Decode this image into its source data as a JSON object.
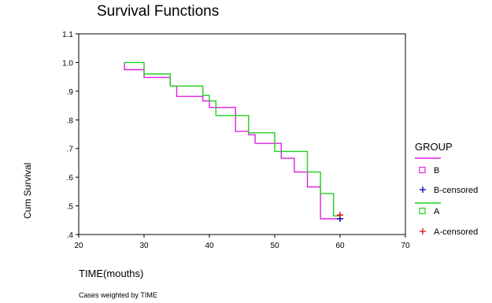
{
  "chart_data": {
    "type": "line",
    "title": "Survival Functions",
    "xlabel": "TIME(mouths)",
    "ylabel": "Cum Survival",
    "footnote": "Cases weighted by TIME",
    "xlim": [
      20,
      70
    ],
    "ylim": [
      0.4,
      1.1
    ],
    "xticks": [
      20,
      30,
      40,
      50,
      60,
      70
    ],
    "yticks": [
      {
        "v": 0.4,
        "label": ".4"
      },
      {
        "v": 0.5,
        "label": ".5"
      },
      {
        "v": 0.6,
        "label": ".6"
      },
      {
        "v": 0.7,
        "label": ".7"
      },
      {
        "v": 0.8,
        "label": ".8"
      },
      {
        "v": 0.9,
        "label": ".9"
      },
      {
        "v": 1.0,
        "label": "1.0"
      },
      {
        "v": 1.1,
        "label": "1.1"
      }
    ],
    "legend_title": "GROUP",
    "legend_position": "right",
    "series": [
      {
        "name": "B",
        "color": "#e020e0",
        "steps": [
          [
            27,
            1.0
          ],
          [
            27,
            0.975
          ],
          [
            30,
            0.975
          ],
          [
            30,
            0.948
          ],
          [
            34,
            0.948
          ],
          [
            34,
            0.918
          ],
          [
            35,
            0.918
          ],
          [
            35,
            0.882
          ],
          [
            39,
            0.882
          ],
          [
            39,
            0.866
          ],
          [
            40,
            0.866
          ],
          [
            40,
            0.843
          ],
          [
            44,
            0.843
          ],
          [
            44,
            0.76
          ],
          [
            46,
            0.76
          ],
          [
            46,
            0.748
          ],
          [
            47,
            0.748
          ],
          [
            47,
            0.718
          ],
          [
            50,
            0.718
          ],
          [
            50,
            0.718
          ],
          [
            51,
            0.718
          ],
          [
            51,
            0.666
          ],
          [
            53,
            0.666
          ],
          [
            53,
            0.618
          ],
          [
            55,
            0.618
          ],
          [
            55,
            0.566
          ],
          [
            57,
            0.566
          ],
          [
            57,
            0.455
          ],
          [
            60,
            0.455
          ]
        ]
      },
      {
        "name": "A",
        "color": "#20d020",
        "steps": [
          [
            27,
            1.0
          ],
          [
            30,
            1.0
          ],
          [
            30,
            0.96
          ],
          [
            34,
            0.96
          ],
          [
            34,
            0.918
          ],
          [
            39,
            0.918
          ],
          [
            39,
            0.885
          ],
          [
            40,
            0.885
          ],
          [
            40,
            0.866
          ],
          [
            41,
            0.866
          ],
          [
            41,
            0.815
          ],
          [
            46,
            0.815
          ],
          [
            46,
            0.755
          ],
          [
            50,
            0.755
          ],
          [
            50,
            0.69
          ],
          [
            55,
            0.69
          ],
          [
            55,
            0.618
          ],
          [
            57,
            0.618
          ],
          [
            57,
            0.543
          ],
          [
            59,
            0.543
          ],
          [
            59,
            0.465
          ],
          [
            60,
            0.465
          ]
        ]
      }
    ],
    "censored": [
      {
        "name": "B-censored",
        "color": "#1010c0",
        "x": 60,
        "y": 0.455
      },
      {
        "name": "A-censored",
        "color": "#e02020",
        "x": 60,
        "y": 0.468
      }
    ],
    "legend": [
      {
        "kind": "line",
        "label": "",
        "color": "#e020e0"
      },
      {
        "kind": "square",
        "label": "B",
        "color": "#e020e0"
      },
      {
        "kind": "plus",
        "label": "B-censored",
        "color": "#1010c0"
      },
      {
        "kind": "line",
        "label": "",
        "color": "#20d020"
      },
      {
        "kind": "square",
        "label": "A",
        "color": "#20d020"
      },
      {
        "kind": "plus",
        "label": "A-censored",
        "color": "#e02020"
      }
    ]
  }
}
